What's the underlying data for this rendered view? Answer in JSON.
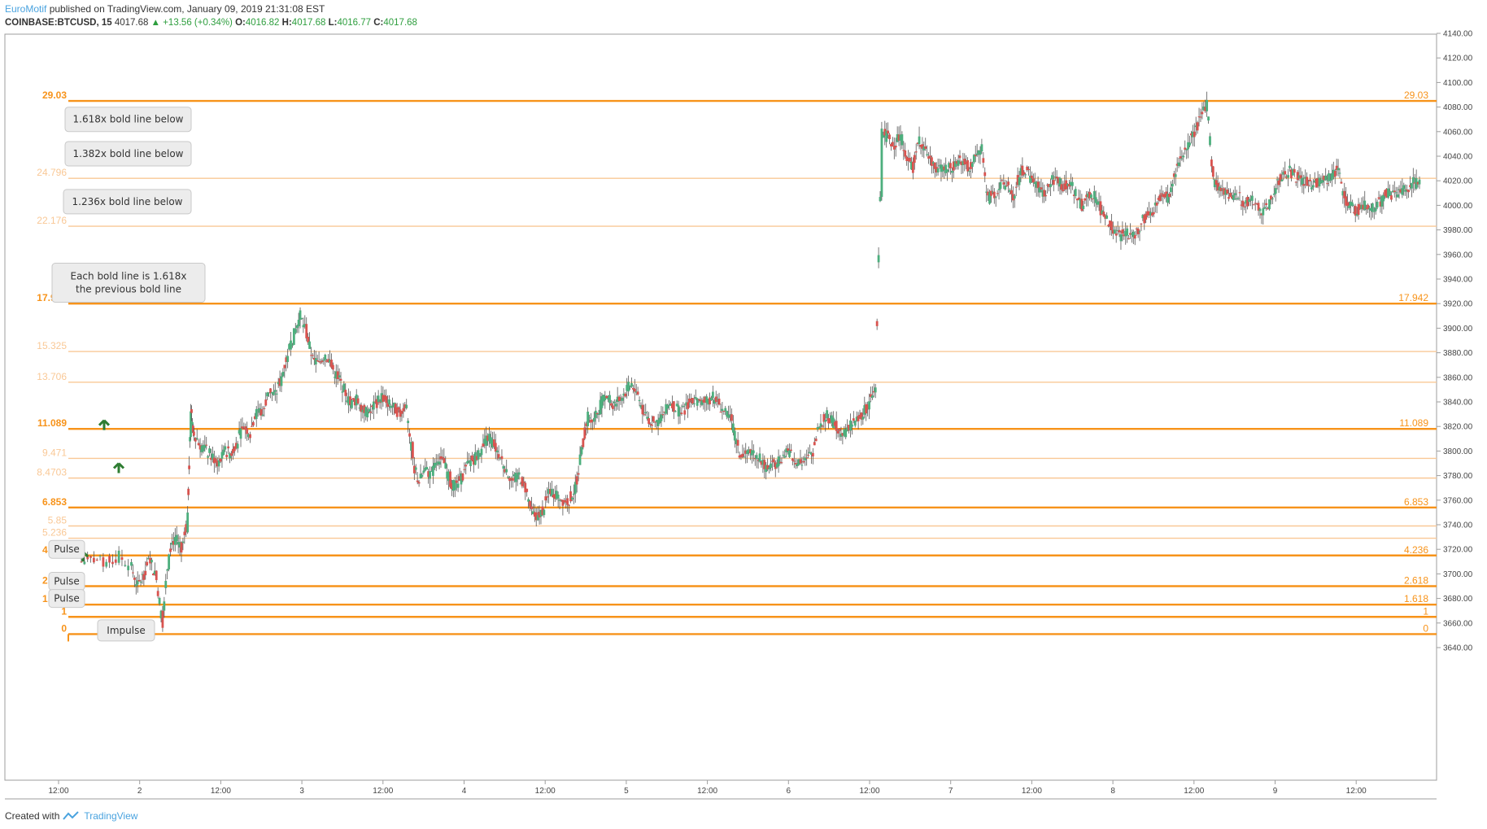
{
  "header": {
    "author": "EuroMotif",
    "published": "published on TradingView.com, January 09, 2019 21:31:08 EST",
    "symbol": "COINBASE:BTCUSD, 15",
    "last": "4017.68",
    "change": "+13.56 (+0.34%)",
    "o_label": "O:",
    "o_value": "4016.82",
    "h_label": "H:",
    "h_value": "4017.68",
    "l_label": "L:",
    "l_value": "4016.77",
    "c_label": "C:",
    "c_value": "4017.68"
  },
  "footer": {
    "created_with": "Created with",
    "brand": "TradingView"
  },
  "colors": {
    "fib_bold": "#f7931a",
    "fib_light": "#f9c896",
    "up": "#4caf7d",
    "down": "#d9534f",
    "wick": "#555555",
    "accent": "#4aa3df"
  },
  "chart_data": {
    "type": "candlestick",
    "ylim": [
      3630,
      4140
    ],
    "y_ticks": [
      "3640.00",
      "3660.00",
      "3680.00",
      "3700.00",
      "3720.00",
      "3740.00",
      "3760.00",
      "3780.00",
      "3800.00",
      "3820.00",
      "3840.00",
      "3860.00",
      "3880.00",
      "3900.00",
      "3920.00",
      "3940.00",
      "3960.00",
      "3980.00",
      "4000.00",
      "4020.00",
      "4040.00",
      "4060.00",
      "4080.00",
      "4100.00",
      "4120.00",
      "4140.00"
    ],
    "x_ticks": [
      "12:00",
      "2",
      "12:00",
      "3",
      "12:00",
      "4",
      "12:00",
      "5",
      "12:00",
      "6",
      "12:00",
      "7",
      "12:00",
      "8",
      "12:00",
      "9",
      "12:00"
    ],
    "fib_levels": [
      {
        "label": "0",
        "price": 3651,
        "bold": true,
        "right": true
      },
      {
        "label": "1",
        "price": 3665,
        "bold": true,
        "right": true
      },
      {
        "label": "1.618",
        "price": 3675,
        "bold": true,
        "right": true
      },
      {
        "label": "2.618",
        "price": 3690,
        "bold": true,
        "right": true
      },
      {
        "label": "4.236",
        "price": 3715,
        "bold": true,
        "right": true
      },
      {
        "label": "5.236",
        "price": 3729,
        "bold": false,
        "right": false
      },
      {
        "label": "5.85",
        "price": 3739,
        "bold": false,
        "right": false
      },
      {
        "label": "6.853",
        "price": 3754,
        "bold": true,
        "right": true
      },
      {
        "label": "8.4703",
        "price": 3778,
        "bold": false,
        "right": false
      },
      {
        "label": "9.471",
        "price": 3794,
        "bold": false,
        "right": false
      },
      {
        "label": "11.089",
        "price": 3818,
        "bold": true,
        "right": true
      },
      {
        "label": "13.706",
        "price": 3856,
        "bold": false,
        "right": false
      },
      {
        "label": "15.325",
        "price": 3881,
        "bold": false,
        "right": false
      },
      {
        "label": "17.942",
        "price": 3920,
        "bold": true,
        "right": true
      },
      {
        "label": "22.176",
        "price": 3983,
        "bold": false,
        "right": false
      },
      {
        "label": "24.796",
        "price": 4022,
        "bold": false,
        "right": false
      },
      {
        "label": "29.03",
        "price": 4085,
        "bold": true,
        "right": true
      }
    ],
    "annotations": [
      {
        "text": "1.618x bold line below",
        "price": 4070
      },
      {
        "text": "1.382x bold line below",
        "price": 4042
      },
      {
        "text": "1.236x bold line below",
        "price": 4003
      },
      {
        "text": "Each bold line is 1.618x",
        "text2": "the previous bold line",
        "price": 3937
      },
      {
        "text": "Pulse",
        "price": 3720
      },
      {
        "text": "Pulse",
        "price": 3694
      },
      {
        "text": "Pulse",
        "price": 3680
      },
      {
        "text": "Impulse",
        "price": 3654
      }
    ],
    "price_path": [
      [
        0,
        3710
      ],
      [
        2,
        3712
      ],
      [
        4,
        3708
      ],
      [
        6,
        3715
      ],
      [
        8,
        3705
      ],
      [
        9,
        3690
      ],
      [
        10,
        3700
      ],
      [
        11,
        3712
      ],
      [
        12,
        3695
      ],
      [
        13,
        3660
      ],
      [
        14,
        3720
      ],
      [
        15,
        3730
      ],
      [
        16,
        3718
      ],
      [
        17,
        3745
      ],
      [
        17.5,
        3835
      ],
      [
        18,
        3815
      ],
      [
        19,
        3805
      ],
      [
        20,
        3800
      ],
      [
        21,
        3795
      ],
      [
        22,
        3790
      ],
      [
        23,
        3800
      ],
      [
        24,
        3798
      ],
      [
        25,
        3810
      ],
      [
        26,
        3820
      ],
      [
        27,
        3815
      ],
      [
        28,
        3835
      ],
      [
        29,
        3830
      ],
      [
        30,
        3850
      ],
      [
        31,
        3845
      ],
      [
        32,
        3860
      ],
      [
        33,
        3880
      ],
      [
        34,
        3895
      ],
      [
        35,
        3910
      ],
      [
        36,
        3895
      ],
      [
        37,
        3875
      ],
      [
        38,
        3870
      ],
      [
        39,
        3880
      ],
      [
        40,
        3868
      ],
      [
        41,
        3860
      ],
      [
        42,
        3850
      ],
      [
        43,
        3838
      ],
      [
        44,
        3842
      ],
      [
        45,
        3835
      ],
      [
        46,
        3830
      ],
      [
        47,
        3838
      ],
      [
        48,
        3845
      ],
      [
        49,
        3840
      ],
      [
        50,
        3835
      ],
      [
        51,
        3830
      ],
      [
        52,
        3840
      ],
      [
        53,
        3790
      ],
      [
        54,
        3775
      ],
      [
        55,
        3785
      ],
      [
        56,
        3780
      ],
      [
        57,
        3795
      ],
      [
        58,
        3790
      ],
      [
        59,
        3775
      ],
      [
        60,
        3770
      ],
      [
        61,
        3780
      ],
      [
        62,
        3790
      ],
      [
        63,
        3795
      ],
      [
        64,
        3800
      ],
      [
        65,
        3812
      ],
      [
        66,
        3805
      ],
      [
        67,
        3795
      ],
      [
        68,
        3785
      ],
      [
        69,
        3775
      ],
      [
        70,
        3780
      ],
      [
        71,
        3770
      ],
      [
        72,
        3750
      ],
      [
        73,
        3745
      ],
      [
        74,
        3755
      ],
      [
        75,
        3768
      ],
      [
        76,
        3765
      ],
      [
        77,
        3760
      ],
      [
        78,
        3760
      ],
      [
        79,
        3770
      ],
      [
        80,
        3800
      ],
      [
        81,
        3830
      ],
      [
        82,
        3825
      ],
      [
        83,
        3838
      ],
      [
        84,
        3845
      ],
      [
        85,
        3838
      ],
      [
        86,
        3842
      ],
      [
        87,
        3848
      ],
      [
        88,
        3855
      ],
      [
        89,
        3845
      ],
      [
        90,
        3830
      ],
      [
        91,
        3825
      ],
      [
        92,
        3822
      ],
      [
        93,
        3830
      ],
      [
        94,
        3840
      ],
      [
        95,
        3835
      ],
      [
        96,
        3830
      ],
      [
        97,
        3838
      ],
      [
        98,
        3842
      ],
      [
        99,
        3838
      ],
      [
        100,
        3840
      ],
      [
        101,
        3845
      ],
      [
        102,
        3838
      ],
      [
        103,
        3830
      ],
      [
        104,
        3825
      ],
      [
        105,
        3800
      ],
      [
        106,
        3795
      ],
      [
        107,
        3800
      ],
      [
        108,
        3798
      ],
      [
        109,
        3790
      ],
      [
        110,
        3785
      ],
      [
        111,
        3790
      ],
      [
        112,
        3795
      ],
      [
        113,
        3798
      ],
      [
        114,
        3795
      ],
      [
        115,
        3790
      ],
      [
        116,
        3792
      ],
      [
        117,
        3800
      ],
      [
        118,
        3820
      ],
      [
        119,
        3830
      ],
      [
        120,
        3825
      ],
      [
        121,
        3818
      ],
      [
        122,
        3815
      ],
      [
        123,
        3820
      ],
      [
        124,
        3825
      ],
      [
        125,
        3830
      ],
      [
        126,
        3840
      ],
      [
        127,
        3850
      ],
      [
        128,
        4060
      ],
      [
        129,
        4055
      ],
      [
        130,
        4050
      ],
      [
        131,
        4058
      ],
      [
        132,
        4040
      ],
      [
        133,
        4030
      ],
      [
        134,
        4055
      ],
      [
        135,
        4045
      ],
      [
        136,
        4035
      ],
      [
        137,
        4030
      ],
      [
        138,
        4028
      ],
      [
        139,
        4030
      ],
      [
        140,
        4035
      ],
      [
        141,
        4038
      ],
      [
        142,
        4030
      ],
      [
        143,
        4040
      ],
      [
        144,
        4045
      ],
      [
        145,
        4005
      ],
      [
        146,
        4010
      ],
      [
        147,
        4015
      ],
      [
        148,
        4018
      ],
      [
        149,
        4005
      ],
      [
        150,
        4025
      ],
      [
        151,
        4030
      ],
      [
        152,
        4020
      ],
      [
        153,
        4015
      ],
      [
        154,
        4010
      ],
      [
        155,
        4020
      ],
      [
        156,
        4022
      ],
      [
        157,
        4015
      ],
      [
        158,
        4018
      ],
      [
        159,
        4010
      ],
      [
        160,
        4000
      ],
      [
        161,
        4005
      ],
      [
        162,
        4010
      ],
      [
        163,
        3995
      ],
      [
        164,
        3990
      ],
      [
        165,
        3980
      ],
      [
        166,
        3975
      ],
      [
        167,
        3978
      ],
      [
        168,
        3975
      ],
      [
        169,
        3980
      ],
      [
        170,
        3990
      ],
      [
        171,
        3995
      ],
      [
        172,
        4000
      ],
      [
        173,
        4010
      ],
      [
        174,
        4005
      ],
      [
        175,
        4030
      ],
      [
        176,
        4040
      ],
      [
        177,
        4050
      ],
      [
        178,
        4060
      ],
      [
        179,
        4070
      ],
      [
        180,
        4085
      ],
      [
        181,
        4020
      ],
      [
        182,
        4015
      ],
      [
        183,
        4010
      ],
      [
        184,
        4005
      ],
      [
        185,
        4010
      ],
      [
        186,
        4000
      ],
      [
        187,
        4005
      ],
      [
        188,
        4000
      ],
      [
        189,
        3995
      ],
      [
        190,
        4000
      ],
      [
        191,
        4015
      ],
      [
        192,
        4025
      ],
      [
        193,
        4028
      ],
      [
        194,
        4025
      ],
      [
        195,
        4020
      ],
      [
        196,
        4018
      ],
      [
        197,
        4015
      ],
      [
        198,
        4020
      ],
      [
        199,
        4022
      ],
      [
        200,
        4025
      ],
      [
        201,
        4030
      ],
      [
        202,
        4005
      ],
      [
        203,
        4000
      ],
      [
        204,
        3995
      ],
      [
        205,
        4000
      ],
      [
        206,
        3998
      ],
      [
        207,
        4000
      ],
      [
        208,
        4005
      ],
      [
        209,
        4010
      ],
      [
        210,
        4008
      ],
      [
        211,
        4010
      ],
      [
        212,
        4015
      ],
      [
        213,
        4018
      ],
      [
        214,
        4017.68
      ]
    ]
  }
}
